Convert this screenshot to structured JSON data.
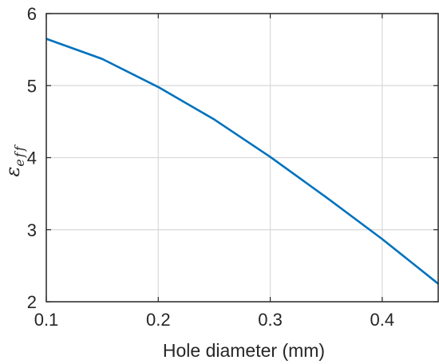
{
  "chart_data": {
    "type": "line",
    "title": "",
    "xlabel": "Hole diameter (mm)",
    "ylabel": "ε",
    "ylabel_subscript": "eff",
    "xlim": [
      0.1,
      0.45
    ],
    "ylim": [
      2,
      6
    ],
    "xticks": [
      0.1,
      0.2,
      0.3,
      0.4
    ],
    "yticks": [
      2,
      3,
      4,
      5,
      6
    ],
    "xtick_labels": [
      "0.1",
      "0.2",
      "0.3",
      "0.4"
    ],
    "ytick_labels": [
      "2",
      "3",
      "4",
      "5",
      "6"
    ],
    "grid": true,
    "line_color": "#0072BD",
    "series": [
      {
        "x": [
          0.1,
          0.15,
          0.2,
          0.25,
          0.3,
          0.35,
          0.4,
          0.45
        ],
        "y": [
          5.65,
          5.37,
          4.98,
          4.53,
          4.01,
          3.45,
          2.87,
          2.25
        ]
      }
    ]
  }
}
